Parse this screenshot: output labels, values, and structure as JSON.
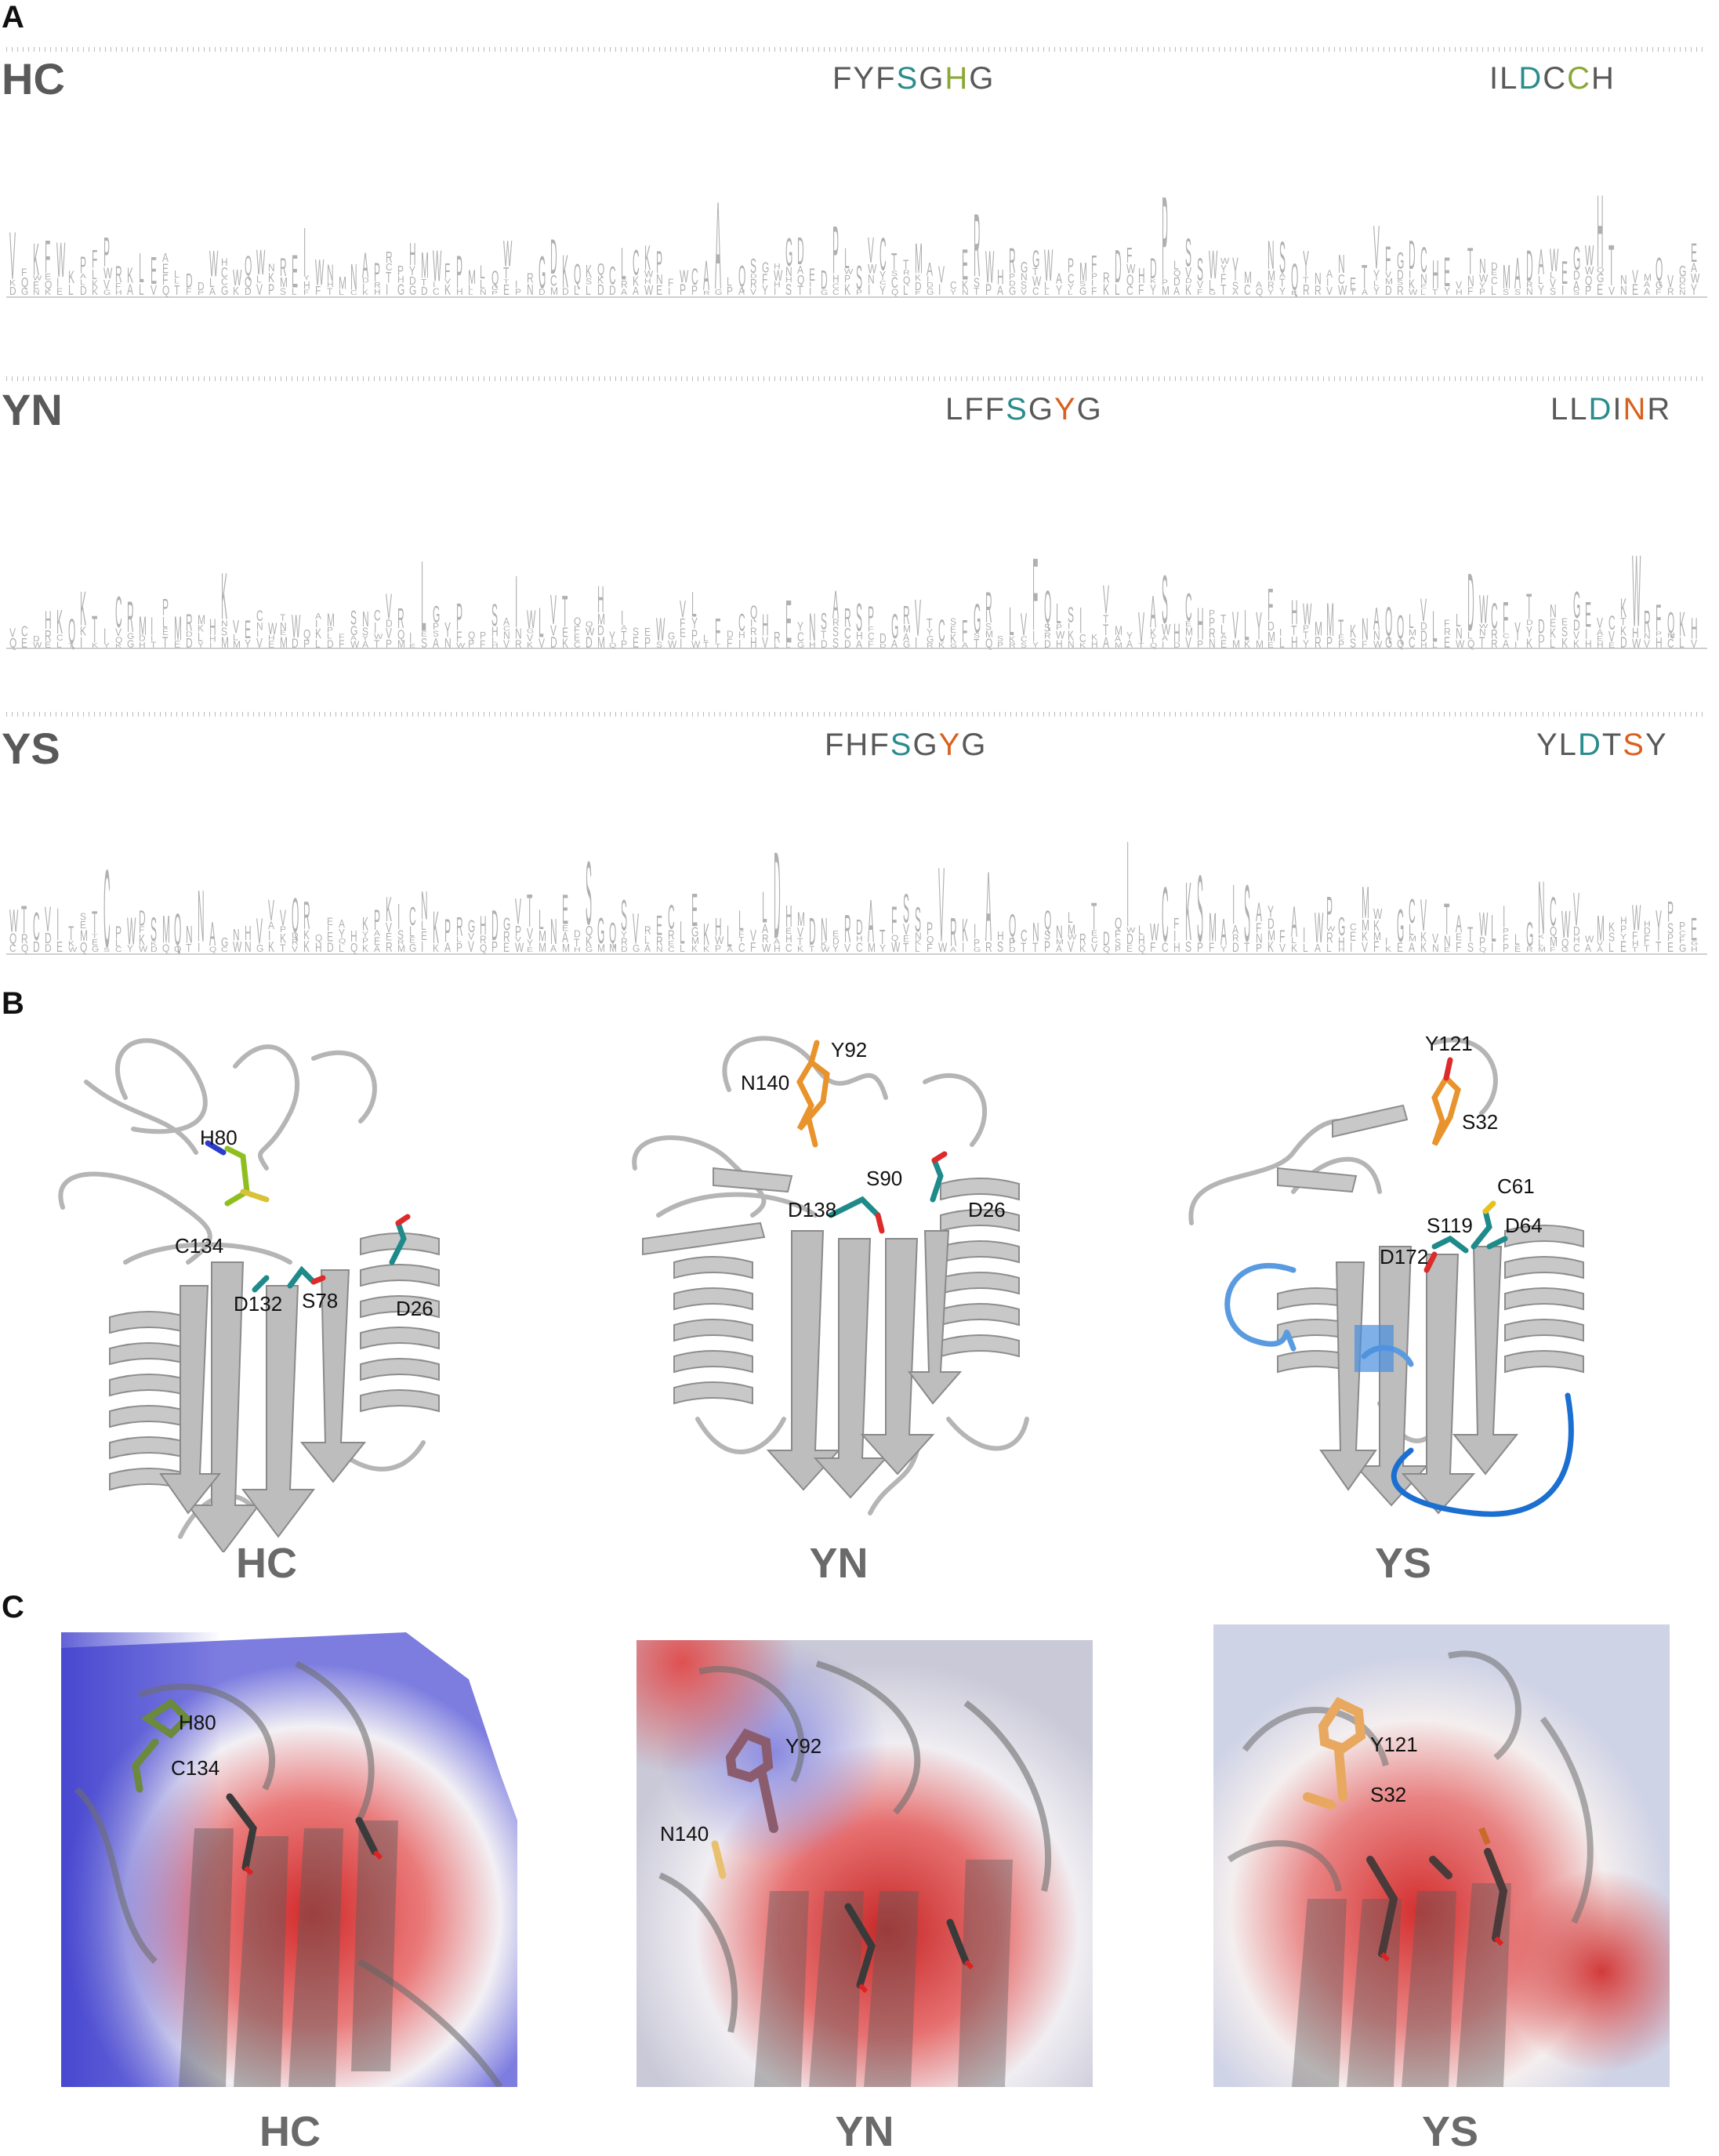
{
  "panels": {
    "a": "A",
    "b": "B",
    "c": "C"
  },
  "logos": [
    {
      "label": "HC",
      "motif1": [
        {
          "t": "FYF",
          "c": "grey"
        },
        {
          "t": "S",
          "c": "teal"
        },
        {
          "t": "G",
          "c": "grey"
        },
        {
          "t": "H",
          "c": "green"
        },
        {
          "t": "G",
          "c": "grey"
        }
      ],
      "motif2": [
        {
          "t": "IL",
          "c": "grey"
        },
        {
          "t": "D",
          "c": "teal"
        },
        {
          "t": "C",
          "c": "grey"
        },
        {
          "t": "C",
          "c": "green"
        },
        {
          "t": "H",
          "c": "grey"
        }
      ]
    },
    {
      "label": "YN",
      "motif1": [
        {
          "t": "LFF",
          "c": "grey"
        },
        {
          "t": "S",
          "c": "teal"
        },
        {
          "t": "G",
          "c": "grey"
        },
        {
          "t": "Y",
          "c": "orange"
        },
        {
          "t": "G",
          "c": "grey"
        }
      ],
      "motif2": [
        {
          "t": "LL",
          "c": "grey"
        },
        {
          "t": "D",
          "c": "teal"
        },
        {
          "t": "I",
          "c": "grey"
        },
        {
          "t": "N",
          "c": "orange"
        },
        {
          "t": "R",
          "c": "grey"
        }
      ]
    },
    {
      "label": "YS",
      "motif1": [
        {
          "t": "FHF",
          "c": "grey"
        },
        {
          "t": "S",
          "c": "teal"
        },
        {
          "t": "G",
          "c": "grey"
        },
        {
          "t": "Y",
          "c": "orange"
        },
        {
          "t": "G",
          "c": "grey"
        }
      ],
      "motif2": [
        {
          "t": "YL",
          "c": "grey"
        },
        {
          "t": "D",
          "c": "teal"
        },
        {
          "t": "T",
          "c": "grey"
        },
        {
          "t": "S",
          "c": "orange"
        },
        {
          "t": "Y",
          "c": "grey"
        }
      ]
    }
  ],
  "structures": [
    {
      "label": "HC",
      "residues": [
        "H80",
        "C134",
        "D132",
        "S78",
        "D26"
      ]
    },
    {
      "label": "YN",
      "residues": [
        "Y92",
        "N140",
        "S90",
        "D138",
        "D26"
      ]
    },
    {
      "label": "YS",
      "residues": [
        "Y121",
        "S32",
        "C61",
        "S119",
        "D64",
        "D172"
      ]
    }
  ],
  "surfaces": [
    {
      "label": "HC",
      "residues": [
        "H80",
        "C134"
      ]
    },
    {
      "label": "YN",
      "residues": [
        "Y92",
        "N140"
      ]
    },
    {
      "label": "YS",
      "residues": [
        "Y121",
        "S32"
      ]
    }
  ],
  "colors": {
    "teal": "#2a8c8c",
    "green": "#8aa837",
    "orange": "#d9601e",
    "grey": "#9a9a9a",
    "blue": "#2f7fd0",
    "red": "#d83a3a"
  }
}
